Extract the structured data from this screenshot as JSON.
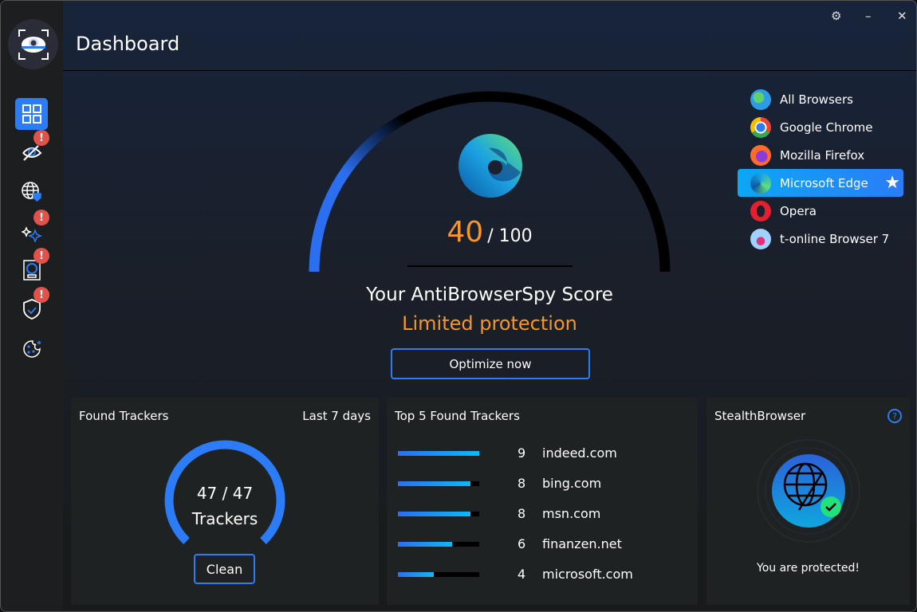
{
  "header": {
    "title": "Dashboard"
  },
  "window_controls": {
    "settings": "⚙",
    "minimize": "–",
    "close": "✕"
  },
  "sidebar": {
    "items": [
      {
        "name": "dashboard",
        "icon": "grid-icon",
        "active": true,
        "alert": false
      },
      {
        "name": "tracking",
        "icon": "eye-slash-icon",
        "alert": true
      },
      {
        "name": "web-protection",
        "icon": "globe-shield-icon",
        "alert": false
      },
      {
        "name": "optimize",
        "icon": "sparkle-icon",
        "alert": true
      },
      {
        "name": "fingerprint",
        "icon": "device-icon",
        "alert": true
      },
      {
        "name": "security",
        "icon": "shield-check-icon",
        "alert": true
      },
      {
        "name": "cookies",
        "icon": "cookie-icon",
        "alert": false
      }
    ],
    "alert_glyph": "!"
  },
  "score": {
    "value": "40",
    "max": "/ 100",
    "fraction": 0.4,
    "label": "Your AntiBrowserSpy Score",
    "status": "Limited protection",
    "button": "Optimize now"
  },
  "browsers": [
    {
      "label": "All Browsers",
      "icon": "globe-icon"
    },
    {
      "label": "Google Chrome",
      "icon": "chrome-icon"
    },
    {
      "label": "Mozilla Firefox",
      "icon": "firefox-icon"
    },
    {
      "label": "Microsoft Edge",
      "icon": "edge-icon",
      "selected": true
    },
    {
      "label": "Opera",
      "icon": "opera-icon"
    },
    {
      "label": "t-online Browser 7",
      "icon": "t-online-icon"
    }
  ],
  "found_trackers": {
    "title": "Found Trackers",
    "period": "Last 7 days",
    "count": "47 / 47",
    "unit": "Trackers",
    "button": "Clean"
  },
  "top_trackers": {
    "title": "Top 5 Found Trackers",
    "max": 9,
    "rows": [
      {
        "count": 9,
        "domain": "indeed.com"
      },
      {
        "count": 8,
        "domain": "bing.com"
      },
      {
        "count": 8,
        "domain": "msn.com"
      },
      {
        "count": 6,
        "domain": "finanzen.net"
      },
      {
        "count": 4,
        "domain": "microsoft.com"
      }
    ]
  },
  "stealth": {
    "title": "StealthBrowser",
    "help": "?",
    "status": "You are protected!"
  },
  "colors": {
    "accent": "#2b7cf6",
    "orange": "#f5962a",
    "alert": "#e0524a",
    "success": "#22e07a"
  }
}
